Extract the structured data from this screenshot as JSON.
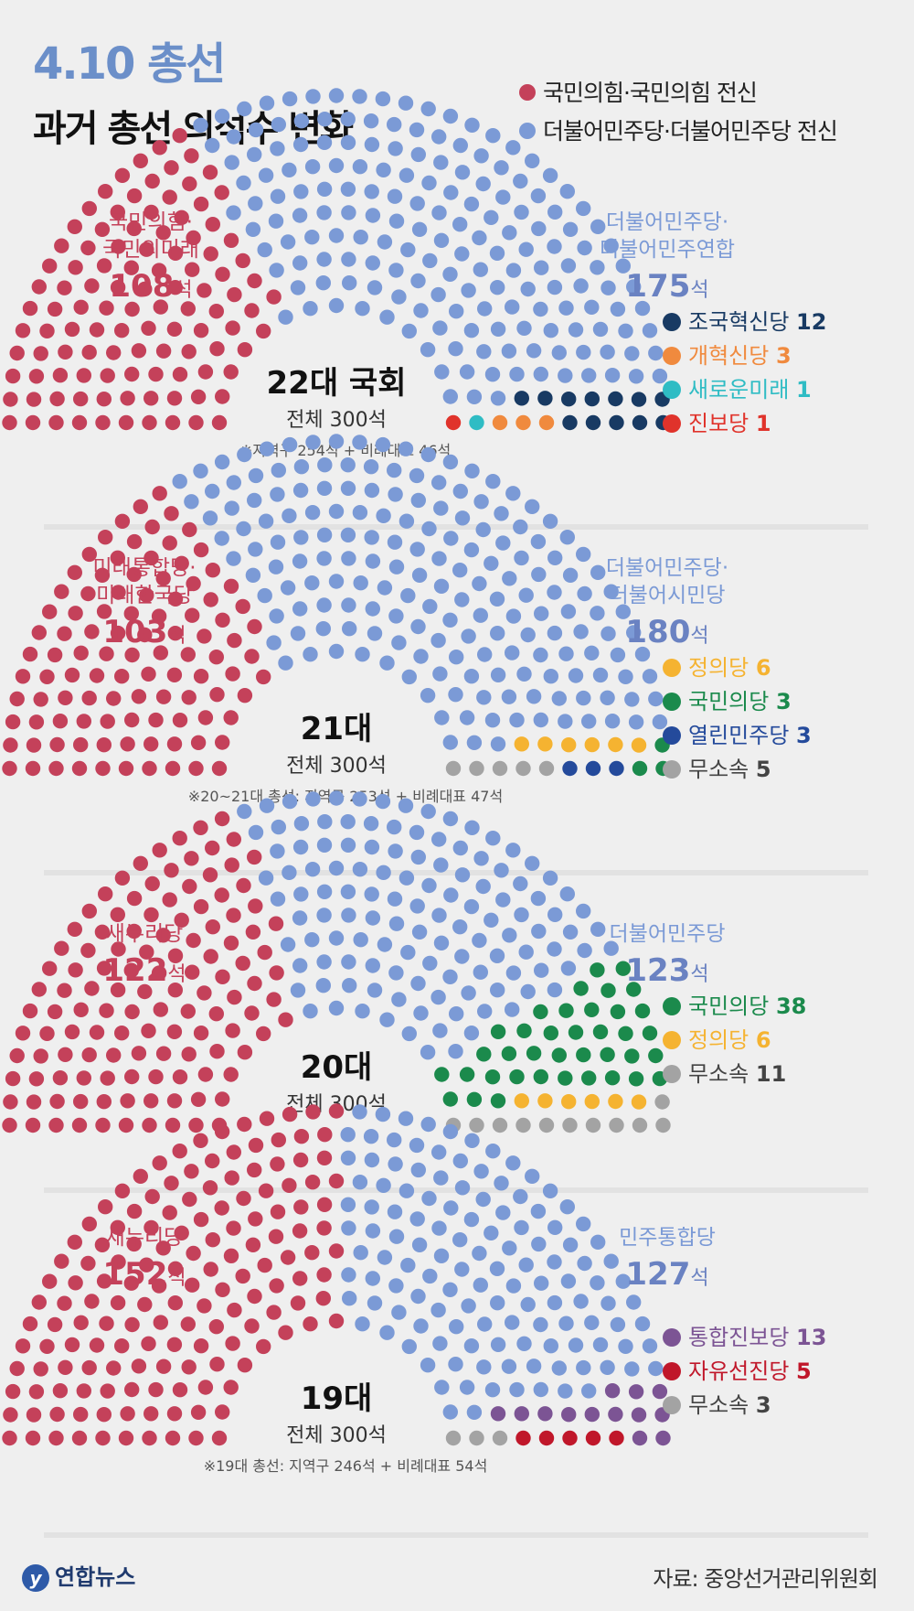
{
  "header": {
    "title": "4.10 총선",
    "subtitle": "과거 총선 의석수 변화"
  },
  "legend": [
    {
      "label": "국민의힘·국민의힘 전신",
      "color": "#c4415a"
    },
    {
      "label": "더불어민주당·더불어민주당 전신",
      "color": "#7b9ad6"
    }
  ],
  "footer": {
    "logo": "연합뉴스",
    "source": "자료: 중앙선거관리위원회"
  },
  "chart_data": [
    {
      "type": "parliament",
      "title": "22대 국회",
      "total_label": "전체 300석",
      "note": "※지역구 254석 + 비례대표 46석",
      "left_party": {
        "name_lines": [
          "국민의힘·",
          "국민의미래"
        ],
        "seats": 108,
        "unit": "석",
        "color": "#c4415a"
      },
      "right_party": {
        "name_lines": [
          "더불어민주당·",
          "더불어민주연합"
        ],
        "seats": 175,
        "unit": "석",
        "color": "#7b9ad6"
      },
      "others": [
        {
          "name": "조국혁신당",
          "seats": 12,
          "color": "#183a63"
        },
        {
          "name": "개혁신당",
          "seats": 3,
          "color": "#f08a3e"
        },
        {
          "name": "새로운미래",
          "seats": 1,
          "color": "#2fbcc4"
        },
        {
          "name": "진보당",
          "seats": 1,
          "color": "#e0332b"
        }
      ]
    },
    {
      "type": "parliament",
      "title": "21대",
      "total_label": "전체 300석",
      "note": "※20~21대 총선: 지역구 253석 + 비례대표 47석",
      "left_party": {
        "name_lines": [
          "미래통합당·",
          "미래한국당"
        ],
        "seats": 103,
        "unit": "석",
        "color": "#c4415a"
      },
      "right_party": {
        "name_lines": [
          "더불어민주당·",
          "더불어시민당"
        ],
        "seats": 180,
        "unit": "석",
        "color": "#7b9ad6"
      },
      "others": [
        {
          "name": "정의당",
          "seats": 6,
          "color": "#f5b331"
        },
        {
          "name": "국민의당",
          "seats": 3,
          "color": "#1b8a4c"
        },
        {
          "name": "열린민주당",
          "seats": 3,
          "color": "#244a9b"
        },
        {
          "name": "무소속",
          "seats": 5,
          "color": "#a3a3a3"
        }
      ]
    },
    {
      "type": "parliament",
      "title": "20대",
      "total_label": "전체 300석",
      "note": "",
      "left_party": {
        "name_lines": [
          "새누리당"
        ],
        "seats": 122,
        "unit": "석",
        "color": "#c4415a"
      },
      "right_party": {
        "name_lines": [
          "더불어민주당"
        ],
        "seats": 123,
        "unit": "석",
        "color": "#7b9ad6"
      },
      "others": [
        {
          "name": "국민의당",
          "seats": 38,
          "color": "#1b8a4c"
        },
        {
          "name": "정의당",
          "seats": 6,
          "color": "#f5b331"
        },
        {
          "name": "무소속",
          "seats": 11,
          "color": "#a3a3a3"
        }
      ]
    },
    {
      "type": "parliament",
      "title": "19대",
      "total_label": "전체 300석",
      "note": "※19대 총선: 지역구 246석 + 비례대표 54석",
      "left_party": {
        "name_lines": [
          "새누리당"
        ],
        "seats": 152,
        "unit": "석",
        "color": "#c4415a"
      },
      "right_party": {
        "name_lines": [
          "민주통합당"
        ],
        "seats": 127,
        "unit": "석",
        "color": "#7b9ad6"
      },
      "others": [
        {
          "name": "통합진보당",
          "seats": 13,
          "color": "#7c5494"
        },
        {
          "name": "자유선진당",
          "seats": 5,
          "color": "#c0172a"
        },
        {
          "name": "무소속",
          "seats": 3,
          "color": "#a3a3a3"
        }
      ]
    }
  ]
}
